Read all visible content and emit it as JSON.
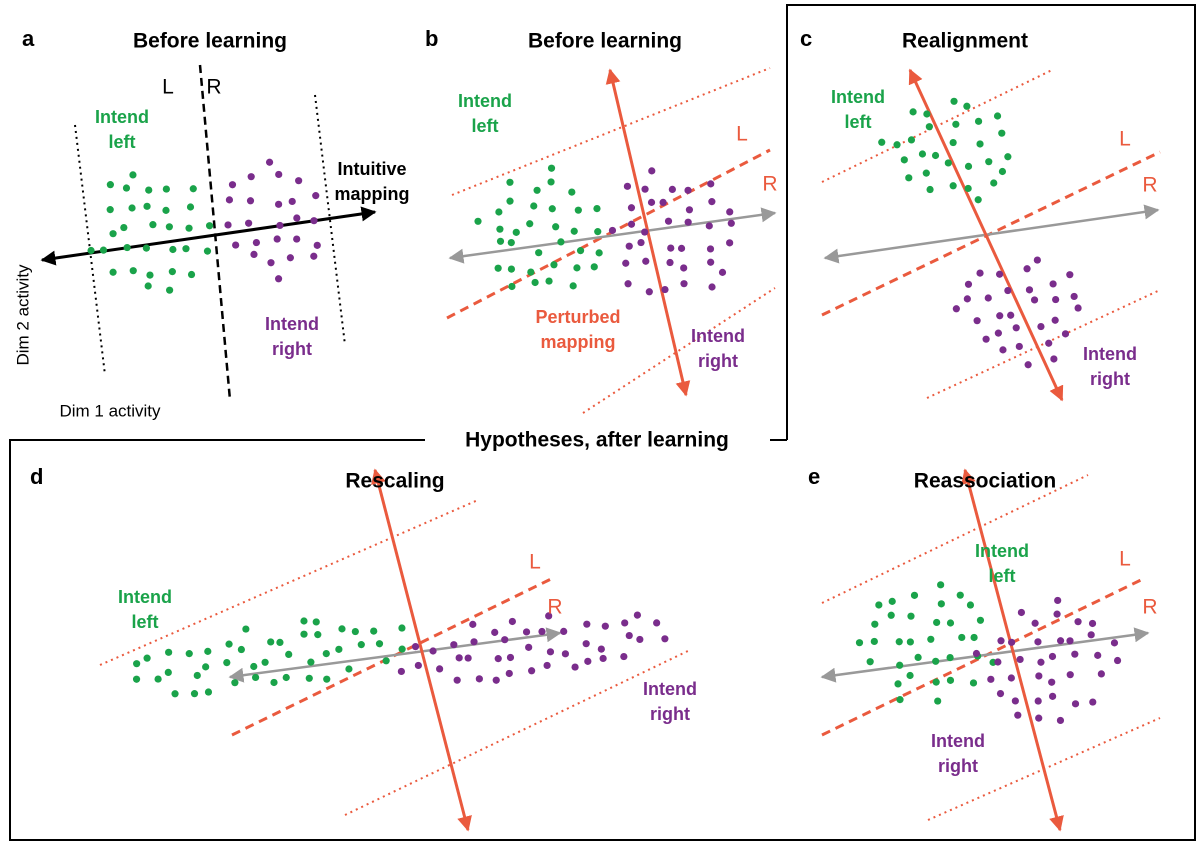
{
  "panels": [
    {
      "letter": "a",
      "title": "Before learning",
      "L": "L",
      "R": "R",
      "left_label": [
        "Intend",
        "left"
      ],
      "right_label": [
        "Intend",
        "right"
      ],
      "mapping_label": [
        "Intuitive",
        "mapping"
      ],
      "y_axis": "Dim 2 activity",
      "x_axis": "Dim 1 activity"
    },
    {
      "letter": "b",
      "title": "Before learning",
      "L": "L",
      "R": "R",
      "left_label": [
        "Intend",
        "left"
      ],
      "right_label": [
        "Intend",
        "right"
      ],
      "mapping_label": [
        "Perturbed",
        "mapping"
      ]
    },
    {
      "letter": "c",
      "title": "Realignment",
      "L": "L",
      "R": "R",
      "left_label": [
        "Intend",
        "left"
      ],
      "right_label": [
        "Intend",
        "right"
      ]
    },
    {
      "letter": "d",
      "title": "Rescaling",
      "L": "L",
      "R": "R",
      "left_label": [
        "Intend",
        "left"
      ],
      "right_label": [
        "Intend",
        "right"
      ]
    },
    {
      "letter": "e",
      "title": "Reassociation",
      "L": "L",
      "R": "R",
      "left_label": [
        "Intend",
        "left"
      ],
      "right_label": [
        "Intend",
        "right"
      ]
    }
  ],
  "frame_label": "Hypotheses, after learning"
}
